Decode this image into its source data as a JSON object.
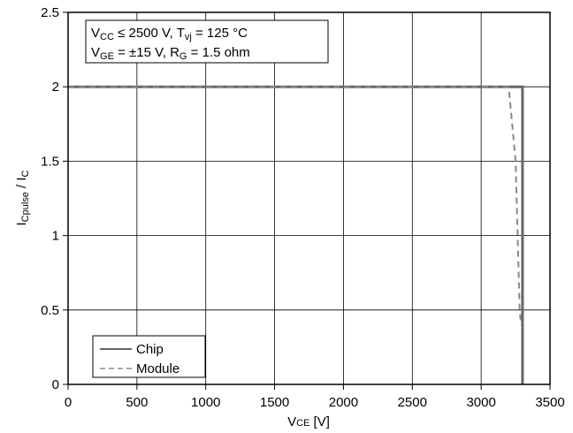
{
  "chart_data": {
    "type": "line",
    "xlabel": {
      "main": "V",
      "sub": "CE",
      "unit": " [V]"
    },
    "ylabel": {
      "main": "I",
      "sub_num": "Cpulse",
      "slash": " / I",
      "sub_den": "C"
    },
    "xlim": [
      0,
      3500
    ],
    "ylim": [
      0,
      2.5
    ],
    "x_ticks": [
      0,
      500,
      1000,
      1500,
      2000,
      2500,
      3000,
      3500
    ],
    "x_tick_labels": [
      "0",
      "500",
      "1000",
      "1500",
      "2000",
      "2500",
      "3000",
      "3500"
    ],
    "y_ticks": [
      0,
      0.5,
      1,
      1.5,
      2,
      2.5
    ],
    "y_tick_labels": [
      "0",
      "0.5",
      "1",
      "1.5",
      "2",
      "2.5"
    ],
    "grid": true,
    "annotation": {
      "line1": [
        {
          "t": "V",
          "s": "n"
        },
        {
          "t": "CC",
          "s": "sub"
        },
        {
          "t": " ≤ 2500 V, T",
          "s": "n"
        },
        {
          "t": "vj",
          "s": "sub"
        },
        {
          "t": " = 125 °C",
          "s": "n"
        }
      ],
      "line2": [
        {
          "t": "V",
          "s": "n"
        },
        {
          "t": "GE",
          "s": "sub"
        },
        {
          "t": " = ±15 V, R",
          "s": "n"
        },
        {
          "t": "G",
          "s": "sub"
        },
        {
          "t": " = 1.5 ohm",
          "s": "n"
        }
      ]
    },
    "legend_position": "bottom-left",
    "series": [
      {
        "name": "Chip",
        "style": "solid",
        "color": "#666666",
        "x": [
          0,
          3300,
          3300
        ],
        "y": [
          2,
          2,
          0
        ]
      },
      {
        "name": "Module",
        "style": "dashed",
        "color": "#888888",
        "x": [
          0,
          3200,
          3250,
          3280,
          3290
        ],
        "y": [
          2,
          2,
          1.5,
          0.5,
          0.4
        ]
      }
    ]
  }
}
